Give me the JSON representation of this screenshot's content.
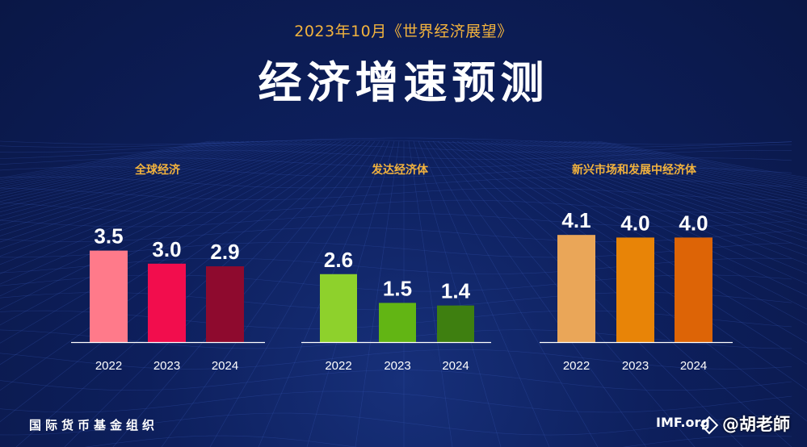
{
  "header": {
    "subtitle": "2023年10月《世界经济展望》",
    "title": "经济增速预测"
  },
  "footer": {
    "org": "国际货币基金组织",
    "site": "IMF.org",
    "watermark": "@胡老師"
  },
  "colors": {
    "background": "#0d1f5c",
    "accent": "#f3b33d"
  },
  "chart_data": [
    {
      "type": "bar",
      "title": "全球经济",
      "categories": [
        "2022",
        "2023",
        "2024"
      ],
      "values": [
        3.5,
        3.0,
        2.9
      ],
      "labels": [
        "3.5",
        "3.0",
        "2.9"
      ],
      "colors": [
        "#ff7a8a",
        "#f20d4d",
        "#8e0a2e"
      ],
      "ylim": [
        0,
        4.4
      ]
    },
    {
      "type": "bar",
      "title": "发达经济体",
      "categories": [
        "2022",
        "2023",
        "2024"
      ],
      "values": [
        2.6,
        1.5,
        1.4
      ],
      "labels": [
        "2.6",
        "1.5",
        "1.4"
      ],
      "colors": [
        "#8ed12c",
        "#62b514",
        "#3e7f10"
      ],
      "ylim": [
        0,
        4.4
      ]
    },
    {
      "type": "bar",
      "title": "新兴市场和发展中经济体",
      "categories": [
        "2022",
        "2023",
        "2024"
      ],
      "values": [
        4.1,
        4.0,
        4.0
      ],
      "labels": [
        "4.1",
        "4.0",
        "4.0"
      ],
      "colors": [
        "#eaa658",
        "#e88407",
        "#dd6406"
      ],
      "ylim": [
        0,
        4.4
      ]
    }
  ]
}
